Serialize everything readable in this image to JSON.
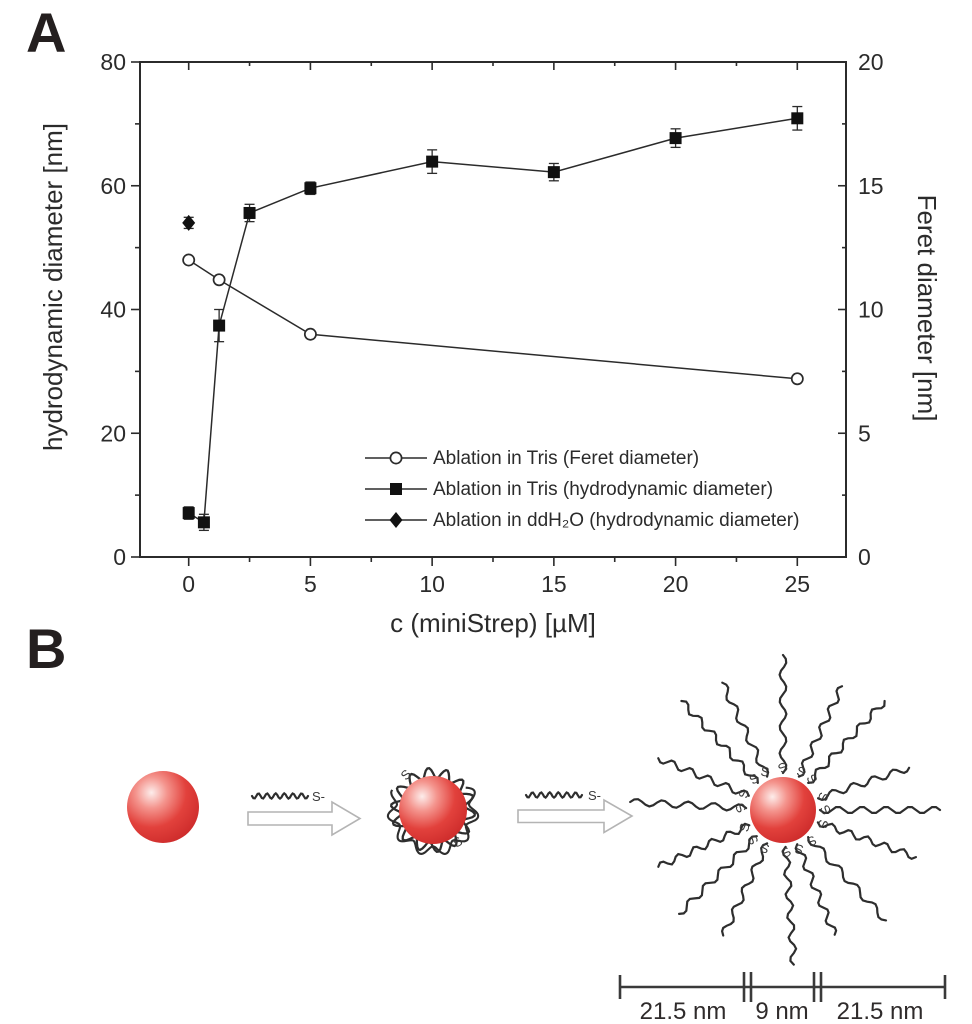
{
  "figure": {
    "background": "#ffffff"
  },
  "panel_a": {
    "label": "A"
  },
  "chart_data": {
    "type": "line",
    "title": "",
    "xlabel": "c (miniStrep) [µM]",
    "ylabel_left": "hydrodynamic diameter [nm]",
    "ylabel_right": "Feret diameter [nm]",
    "xlim": [
      -2,
      27
    ],
    "xticks": [
      0,
      5,
      10,
      15,
      20,
      25
    ],
    "xminor_step": 2.5,
    "ylim_left": [
      0,
      80
    ],
    "yticks_left": [
      0,
      20,
      40,
      60,
      80
    ],
    "yminor_step_left": 10,
    "ylim_right": [
      0,
      20
    ],
    "yticks_right": [
      0,
      5,
      10,
      15,
      20
    ],
    "yminor_step_right": 2.5,
    "grid": false,
    "legend_position": "inside-bottom-right",
    "line_color": "#2b2b2b",
    "series": [
      {
        "name": "Ablation in Tris (Feret diameter)",
        "axis": "right",
        "marker": "open-circle",
        "x": [
          0,
          1.25,
          5,
          25
        ],
        "y": [
          12.0,
          11.2,
          9.0,
          7.2
        ]
      },
      {
        "name": "Ablation in Tris (hydrodynamic diameter)",
        "axis": "left",
        "marker": "filled-square",
        "x": [
          0,
          0.625,
          1.25,
          2.5,
          5,
          10,
          15,
          20,
          25
        ],
        "y": [
          7.1,
          5.6,
          37.4,
          55.6,
          59.6,
          63.9,
          62.2,
          67.7,
          70.9
        ],
        "yerr": [
          1.0,
          1.3,
          2.6,
          1.4,
          1.0,
          1.9,
          1.4,
          1.5,
          1.9
        ]
      },
      {
        "name": "Ablation in ddH₂O (hydrodynamic diameter)",
        "axis": "left",
        "marker": "filled-diamond",
        "x": [
          0
        ],
        "y": [
          54.0
        ],
        "yerr": [
          0.9
        ]
      }
    ]
  },
  "panel_b": {
    "label": "B",
    "thiol_label": "S-",
    "sulfur_label": "S",
    "shell_ligand_count": 16,
    "scale_bar": {
      "segments": [
        "21.5 nm",
        "9 nm",
        "21.5 nm"
      ]
    },
    "colors": {
      "sphere_main": "#e2413c",
      "sphere_dark": "#cc2a2a",
      "sphere_highlight": "#fdedeb",
      "ligand": "#2e2e2e",
      "arrow_outline": "#b4b4b4",
      "scale_bar": "#3a3a3a"
    }
  }
}
